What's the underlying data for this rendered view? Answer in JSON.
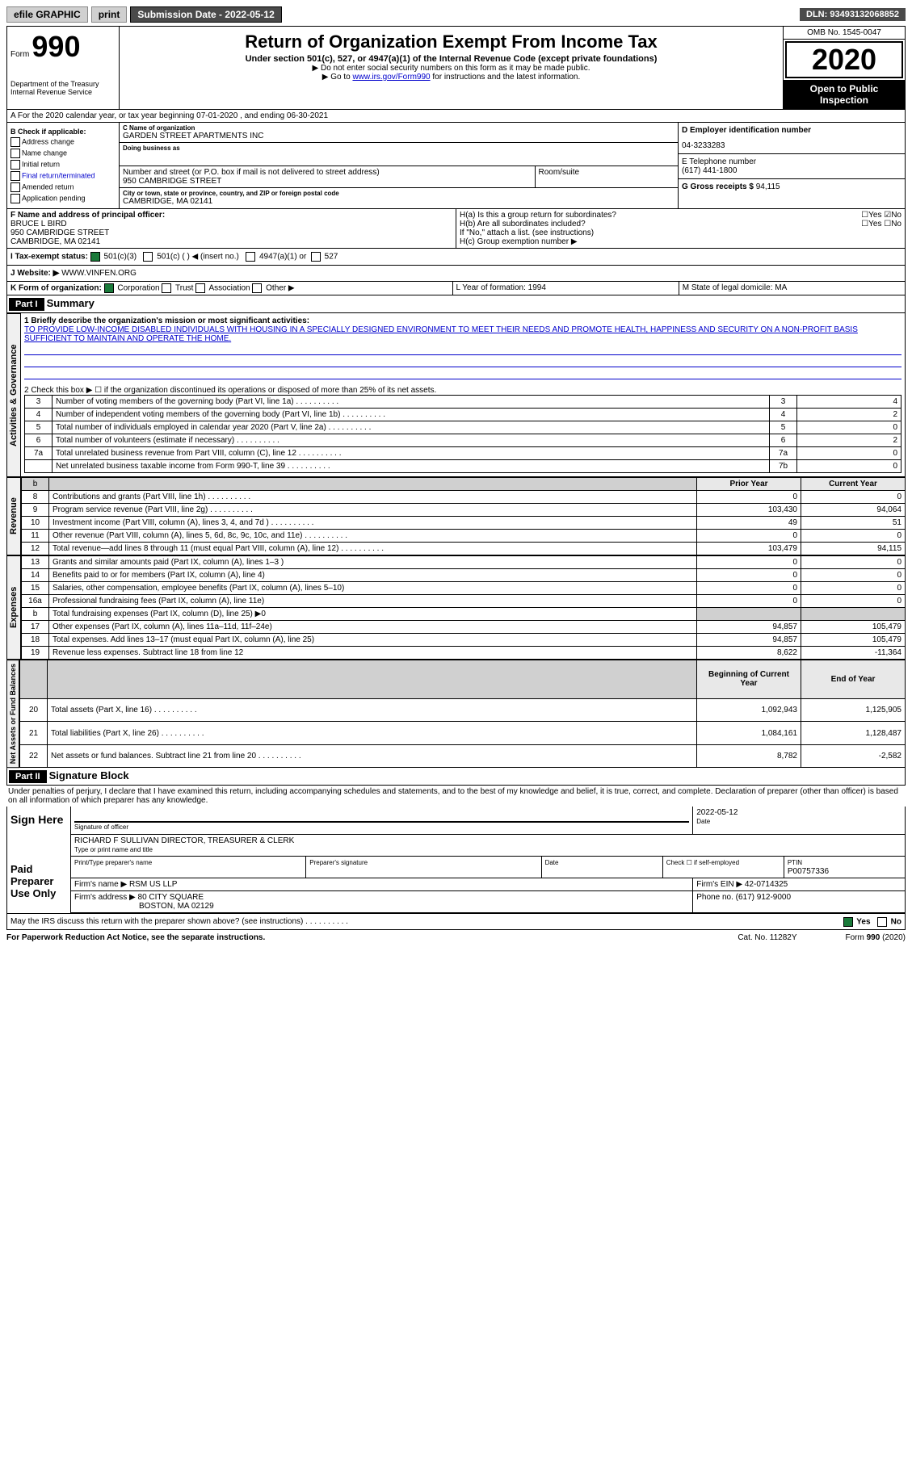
{
  "topbar": {
    "efile": "efile GRAPHIC",
    "print": "print",
    "sub_label": "Submission Date - 2022-05-12",
    "dln": "DLN: 93493132068852"
  },
  "header": {
    "form_prefix": "Form",
    "form_num": "990",
    "dept": "Department of the Treasury\nInternal Revenue Service",
    "title": "Return of Organization Exempt From Income Tax",
    "sub": "Under section 501(c), 527, or 4947(a)(1) of the Internal Revenue Code (except private foundations)",
    "note1": "▶ Do not enter social security numbers on this form as it may be made public.",
    "note2_pre": "▶ Go to ",
    "note2_link": "www.irs.gov/Form990",
    "note2_post": " for instructions and the latest information.",
    "omb": "OMB No. 1545-0047",
    "year": "2020",
    "open": "Open to Public Inspection"
  },
  "section_a": "A For the 2020 calendar year, or tax year beginning 07-01-2020  , and ending 06-30-2021",
  "col_b": {
    "header": "B Check if applicable:",
    "items": [
      "Address change",
      "Name change",
      "Initial return",
      "Final return/terminated",
      "Amended return",
      "Application pending"
    ]
  },
  "col_c": {
    "name_lbl": "C Name of organization",
    "name": "GARDEN STREET APARTMENTS INC",
    "dba_lbl": "Doing business as",
    "addr_lbl": "Number and street (or P.O. box if mail is not delivered to street address)",
    "addr": "950 CAMBRIDGE STREET",
    "room_lbl": "Room/suite",
    "city_lbl": "City or town, state or province, country, and ZIP or foreign postal code",
    "city": "CAMBRIDGE, MA  02141"
  },
  "col_d": {
    "ein_lbl": "D Employer identification number",
    "ein": "04-3233283",
    "phone_lbl": "E Telephone number",
    "phone": "(617) 441-1800",
    "gross_lbl": "G Gross receipts $",
    "gross": "94,115"
  },
  "section_f": {
    "lbl": "F Name and address of principal officer:",
    "name": "BRUCE L BIRD",
    "addr1": "950 CAMBRIDGE STREET",
    "addr2": "CAMBRIDGE, MA  02141"
  },
  "section_h": {
    "ha": "H(a)  Is this a group return for subordinates?",
    "hb": "H(b)  Are all subordinates included?",
    "hb_note": "If \"No,\" attach a list. (see instructions)",
    "hc": "H(c)  Group exemption number ▶",
    "yes": "Yes",
    "no": "No"
  },
  "section_i": {
    "lbl": "I  Tax-exempt status:",
    "opt1": "501(c)(3)",
    "opt2": "501(c) (  ) ◀ (insert no.)",
    "opt3": "4947(a)(1) or",
    "opt4": "527"
  },
  "section_j": {
    "lbl": "J  Website: ▶",
    "val": "WWW.VINFEN.ORG"
  },
  "section_k": {
    "lbl": "K Form of organization:",
    "opts": [
      "Corporation",
      "Trust",
      "Association",
      "Other ▶"
    ]
  },
  "section_lm": {
    "l": "L Year of formation: 1994",
    "m": "M State of legal domicile: MA"
  },
  "part1": {
    "hdr": "Part I",
    "title": "Summary",
    "line1_lbl": "1  Briefly describe the organization's mission or most significant activities:",
    "mission": "TO PROVIDE LOW-INCOME DISABLED INDIVIDUALS WITH HOUSING IN A SPECIALLY DESIGNED ENVIRONMENT TO MEET THEIR NEEDS AND PROMOTE HEALTH, HAPPINESS AND SECURITY ON A NON-PROFIT BASIS SUFFICIENT TO MAINTAIN AND OPERATE THE HOME.",
    "line2": "2   Check this box ▶ ☐  if the organization discontinued its operations or disposed of more than 25% of its net assets.",
    "gov_label": "Activities & Governance",
    "rev_label": "Revenue",
    "exp_label": "Expenses",
    "net_label": "Net Assets or Fund Balances",
    "rows_gov": [
      {
        "n": "3",
        "t": "Number of voting members of the governing body (Part VI, line 1a)",
        "b": "3",
        "v": "4"
      },
      {
        "n": "4",
        "t": "Number of independent voting members of the governing body (Part VI, line 1b)",
        "b": "4",
        "v": "2"
      },
      {
        "n": "5",
        "t": "Total number of individuals employed in calendar year 2020 (Part V, line 2a)",
        "b": "5",
        "v": "0"
      },
      {
        "n": "6",
        "t": "Total number of volunteers (estimate if necessary)",
        "b": "6",
        "v": "2"
      },
      {
        "n": "7a",
        "t": "Total unrelated business revenue from Part VIII, column (C), line 12",
        "b": "7a",
        "v": "0"
      },
      {
        "n": "",
        "t": "Net unrelated business taxable income from Form 990-T, line 39",
        "b": "7b",
        "v": "0"
      }
    ],
    "col_hdrs": {
      "b": "b",
      "prior": "Prior Year",
      "curr": "Current Year"
    },
    "rows_rev": [
      {
        "n": "8",
        "t": "Contributions and grants (Part VIII, line 1h)",
        "p": "0",
        "c": "0"
      },
      {
        "n": "9",
        "t": "Program service revenue (Part VIII, line 2g)",
        "p": "103,430",
        "c": "94,064"
      },
      {
        "n": "10",
        "t": "Investment income (Part VIII, column (A), lines 3, 4, and 7d )",
        "p": "49",
        "c": "51"
      },
      {
        "n": "11",
        "t": "Other revenue (Part VIII, column (A), lines 5, 6d, 8c, 9c, 10c, and 11e)",
        "p": "0",
        "c": "0"
      },
      {
        "n": "12",
        "t": "Total revenue—add lines 8 through 11 (must equal Part VIII, column (A), line 12)",
        "p": "103,479",
        "c": "94,115"
      }
    ],
    "rows_exp": [
      {
        "n": "13",
        "t": "Grants and similar amounts paid (Part IX, column (A), lines 1–3 )",
        "p": "0",
        "c": "0"
      },
      {
        "n": "14",
        "t": "Benefits paid to or for members (Part IX, column (A), line 4)",
        "p": "0",
        "c": "0"
      },
      {
        "n": "15",
        "t": "Salaries, other compensation, employee benefits (Part IX, column (A), lines 5–10)",
        "p": "0",
        "c": "0"
      },
      {
        "n": "16a",
        "t": "Professional fundraising fees (Part IX, column (A), line 11e)",
        "p": "0",
        "c": "0"
      },
      {
        "n": "b",
        "t": "Total fundraising expenses (Part IX, column (D), line 25) ▶0",
        "p": "",
        "c": "",
        "shaded": true
      },
      {
        "n": "17",
        "t": "Other expenses (Part IX, column (A), lines 11a–11d, 11f–24e)",
        "p": "94,857",
        "c": "105,479"
      },
      {
        "n": "18",
        "t": "Total expenses. Add lines 13–17 (must equal Part IX, column (A), line 25)",
        "p": "94,857",
        "c": "105,479"
      },
      {
        "n": "19",
        "t": "Revenue less expenses. Subtract line 18 from line 12",
        "p": "8,622",
        "c": "-11,364"
      }
    ],
    "col_hdrs2": {
      "begin": "Beginning of Current Year",
      "end": "End of Year"
    },
    "rows_net": [
      {
        "n": "20",
        "t": "Total assets (Part X, line 16)",
        "p": "1,092,943",
        "c": "1,125,905"
      },
      {
        "n": "21",
        "t": "Total liabilities (Part X, line 26)",
        "p": "1,084,161",
        "c": "1,128,487"
      },
      {
        "n": "22",
        "t": "Net assets or fund balances. Subtract line 21 from line 20",
        "p": "8,782",
        "c": "-2,582"
      }
    ]
  },
  "part2": {
    "hdr": "Part II",
    "title": "Signature Block",
    "penalty": "Under penalties of perjury, I declare that I have examined this return, including accompanying schedules and statements, and to the best of my knowledge and belief, it is true, correct, and complete. Declaration of preparer (other than officer) is based on all information of which preparer has any knowledge.",
    "sign_here": "Sign Here",
    "sig_officer": "Signature of officer",
    "sig_date": "2022-05-12",
    "date_lbl": "Date",
    "officer_name": "RICHARD F SULLIVAN  DIRECTOR, TREASURER & CLERK",
    "type_lbl": "Type or print name and title",
    "paid_prep": "Paid Preparer Use Only",
    "prep_name_lbl": "Print/Type preparer's name",
    "prep_sig_lbl": "Preparer's signature",
    "prep_date_lbl": "Date",
    "check_self": "Check ☐ if self-employed",
    "ptin_lbl": "PTIN",
    "ptin": "P00757336",
    "firm_name_lbl": "Firm's name  ▶",
    "firm_name": "RSM US LLP",
    "firm_ein_lbl": "Firm's EIN ▶",
    "firm_ein": "42-0714325",
    "firm_addr_lbl": "Firm's address ▶",
    "firm_addr": "80 CITY SQUARE",
    "firm_city": "BOSTON, MA  02129",
    "firm_phone_lbl": "Phone no.",
    "firm_phone": "(617) 912-9000",
    "may_irs": "May the IRS discuss this return with the preparer shown above? (see instructions)"
  },
  "footer": {
    "paperwork": "For Paperwork Reduction Act Notice, see the separate instructions.",
    "cat": "Cat. No. 11282Y",
    "form": "Form 990 (2020)"
  }
}
